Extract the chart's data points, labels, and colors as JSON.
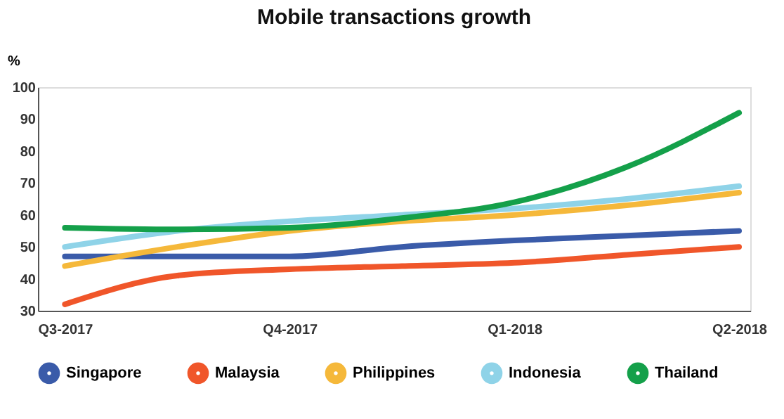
{
  "chart_data": {
    "type": "line",
    "title": "Mobile transactions growth",
    "ylabel": "%",
    "categories": [
      "Q3-2017",
      null,
      "Q4-2017",
      null,
      "Q1-2018",
      null,
      "Q2-2018"
    ],
    "ylim": [
      30,
      100
    ],
    "yticks": [
      30,
      40,
      50,
      60,
      70,
      80,
      90,
      100
    ],
    "grid": false,
    "legend": "bottom",
    "marker": "none",
    "line_style": "solid",
    "series": [
      {
        "name": "Singapore",
        "color": "#3a5ba9",
        "values": [
          47,
          47,
          47,
          50,
          52,
          53.5,
          55
        ]
      },
      {
        "name": "Malaysia",
        "color": "#f0562a",
        "values": [
          32,
          41,
          43,
          44,
          45,
          47.5,
          50
        ]
      },
      {
        "name": "Philippines",
        "color": "#f5b83a",
        "values": [
          44,
          50,
          55,
          58,
          60,
          63,
          67
        ]
      },
      {
        "name": "Indonesia",
        "color": "#8fd3e8",
        "values": [
          50,
          55,
          58,
          60,
          62,
          65,
          69
        ]
      },
      {
        "name": "Thailand",
        "color": "#14a04a",
        "values": [
          56,
          55.5,
          56,
          59,
          64,
          75,
          92
        ]
      }
    ]
  }
}
